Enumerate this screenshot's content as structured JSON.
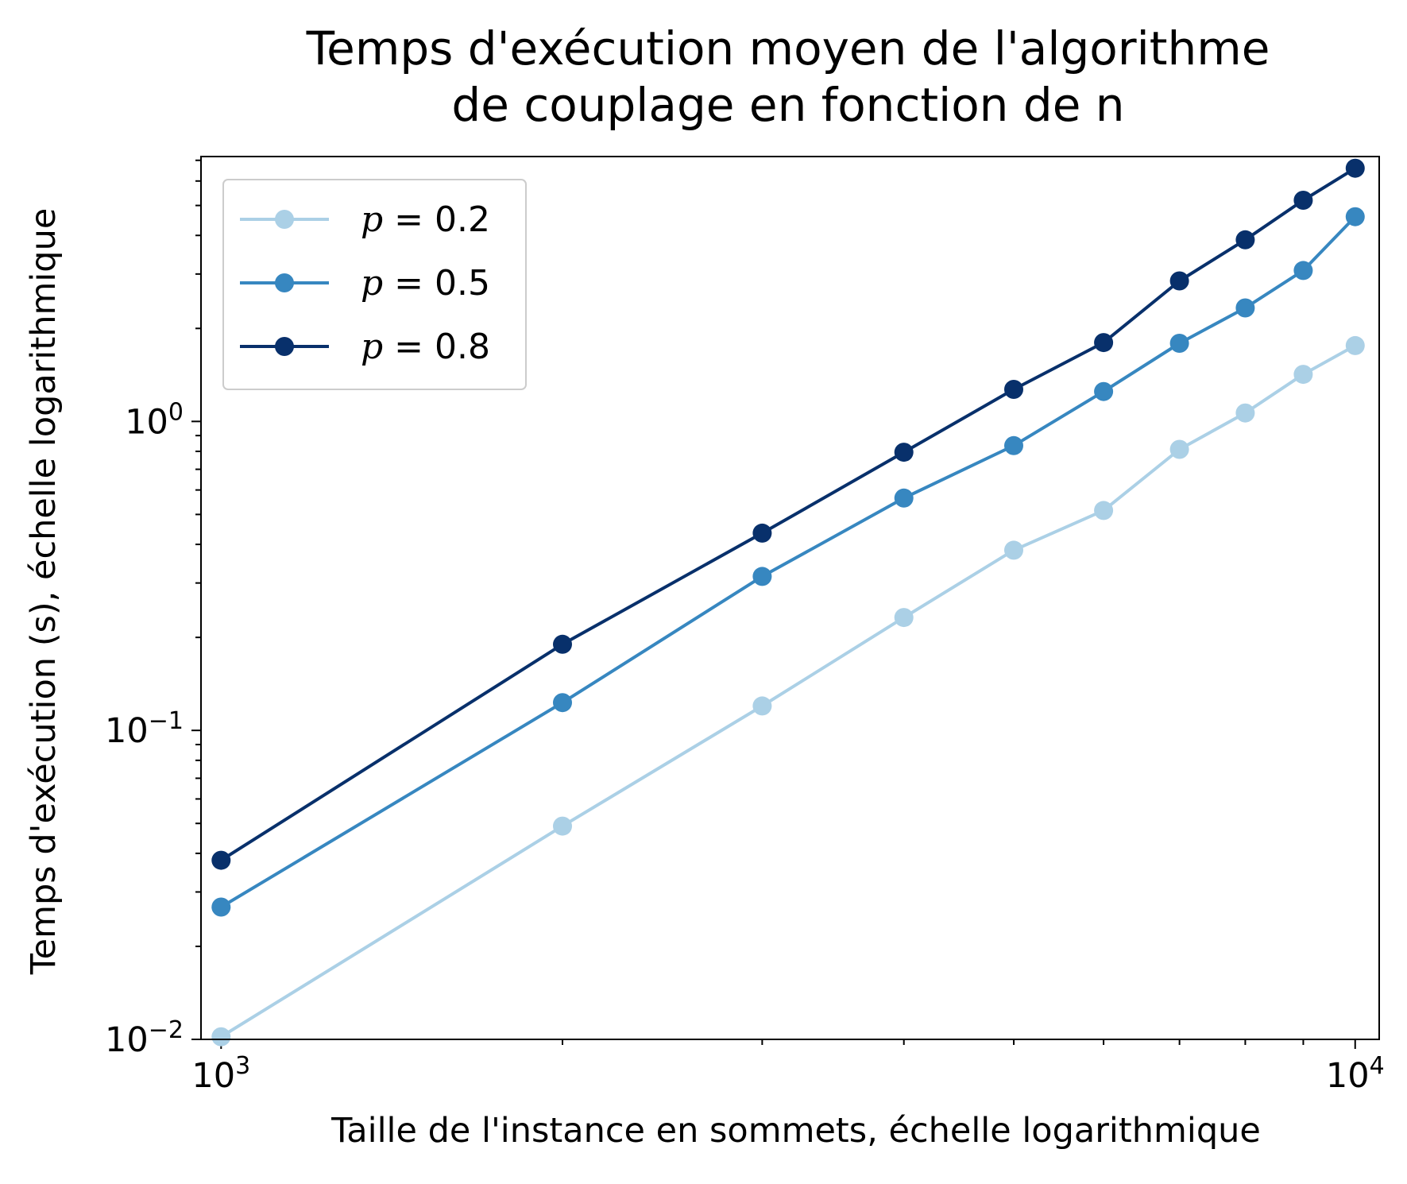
{
  "chart_data": {
    "type": "line",
    "title_lines": [
      "Temps d'exécution moyen de l'algorithme",
      "de couplage en fonction de n"
    ],
    "xlabel": "Taille de l'instance en sommets, échelle logarithmique",
    "ylabel": "Temps d'exécution (s), échelle logarithmique",
    "xscale": "log",
    "yscale": "log",
    "xlim": [
      960,
      10500
    ],
    "ylim": [
      0.01,
      7.2
    ],
    "x_ticks": [
      {
        "value": 1000,
        "base": "10",
        "exp": "3"
      },
      {
        "value": 10000,
        "base": "10",
        "exp": "4"
      }
    ],
    "y_ticks": [
      {
        "value": 0.01,
        "base": "10",
        "exp": "−2"
      },
      {
        "value": 0.1,
        "base": "10",
        "exp": "−1"
      },
      {
        "value": 1,
        "base": "10",
        "exp": "0"
      }
    ],
    "x_minor_ticks": [
      2000,
      3000,
      4000,
      5000,
      6000,
      7000,
      8000,
      9000
    ],
    "grid": false,
    "legend_position": "upper-left",
    "x": [
      1000,
      2000,
      3000,
      4000,
      5000,
      6000,
      7000,
      8000,
      9000,
      10000
    ],
    "series": [
      {
        "name": "p = 0.2",
        "name_var": "p",
        "name_rest": " = 0.2",
        "color": "#abd0e6",
        "values": [
          0.0102,
          0.049,
          0.12,
          0.232,
          0.383,
          0.515,
          0.812,
          1.065,
          1.42,
          1.76
        ]
      },
      {
        "name": "p = 0.5",
        "name_var": "p",
        "name_rest": " = 0.5",
        "color": "#3787c0",
        "values": [
          0.0268,
          0.123,
          0.315,
          0.565,
          0.835,
          1.25,
          1.79,
          2.33,
          3.08,
          4.6
        ]
      },
      {
        "name": "p = 0.8",
        "name_var": "p",
        "name_rest": " = 0.8",
        "color": "#08306b",
        "values": [
          0.038,
          0.19,
          0.435,
          0.795,
          1.27,
          1.8,
          2.85,
          3.87,
          5.2,
          6.6
        ]
      }
    ]
  }
}
